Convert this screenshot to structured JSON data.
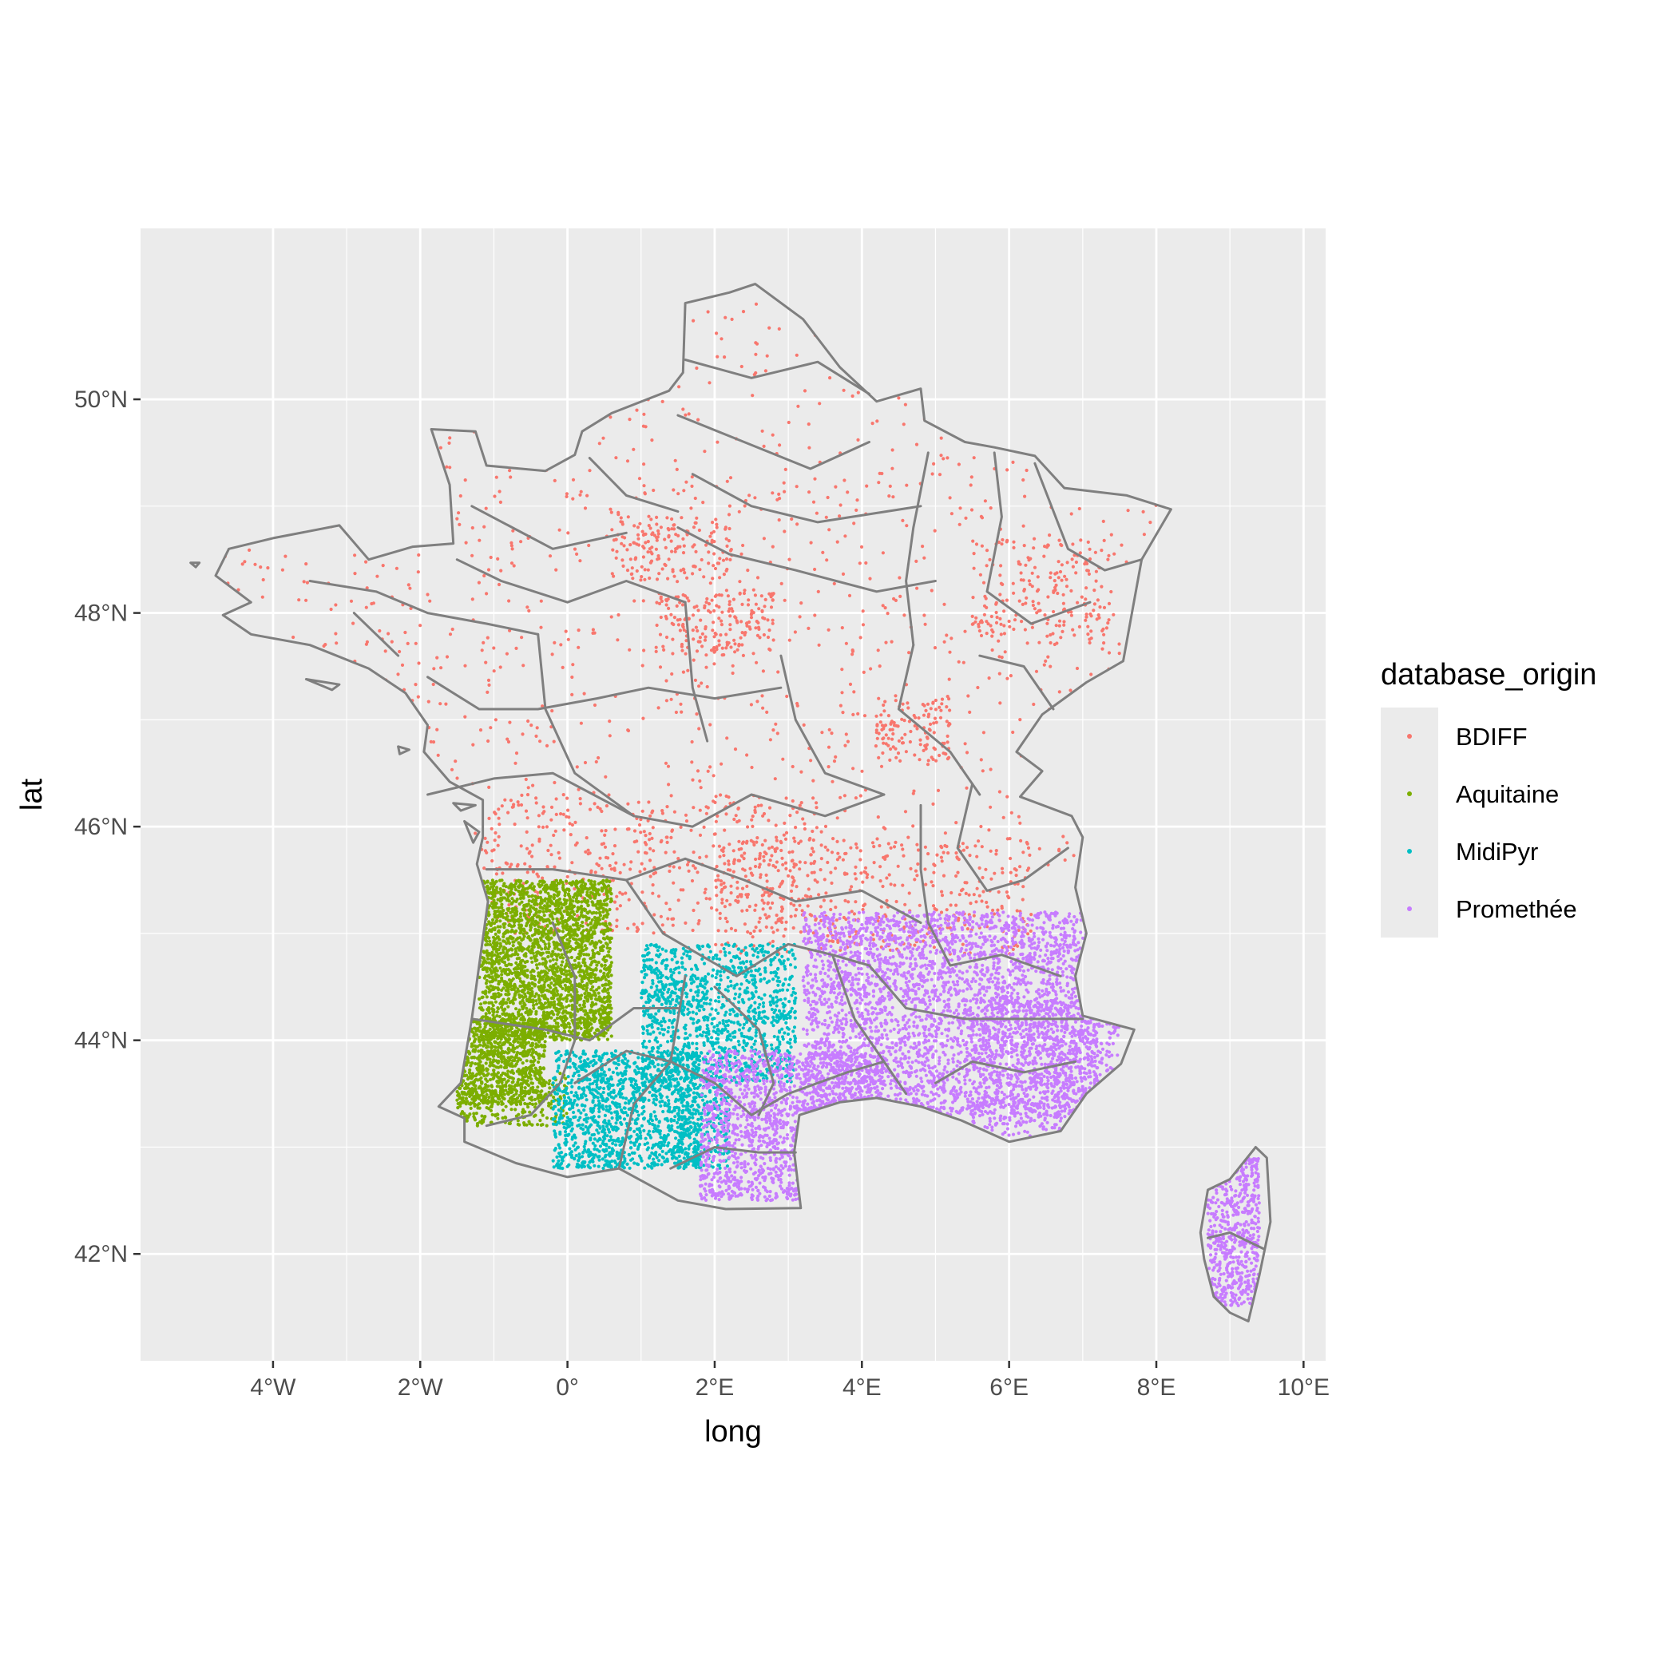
{
  "chart_data": {
    "type": "scatter",
    "title": "",
    "xlabel": "long",
    "ylabel": "lat",
    "xlim": [
      -5.8,
      10.3
    ],
    "ylim": [
      41.0,
      51.6
    ],
    "x_ticks": [
      {
        "value": -4,
        "label": "4°W"
      },
      {
        "value": -2,
        "label": "2°W"
      },
      {
        "value": 0,
        "label": "0°"
      },
      {
        "value": 2,
        "label": "2°E"
      },
      {
        "value": 4,
        "label": "4°E"
      },
      {
        "value": 6,
        "label": "6°E"
      },
      {
        "value": 8,
        "label": "8°E"
      },
      {
        "value": 10,
        "label": "10°E"
      }
    ],
    "y_ticks": [
      {
        "value": 42,
        "label": "42°N"
      },
      {
        "value": 44,
        "label": "44°N"
      },
      {
        "value": 46,
        "label": "46°N"
      },
      {
        "value": 48,
        "label": "48°N"
      },
      {
        "value": 50,
        "label": "50°N"
      }
    ],
    "grid": true,
    "background_color": "#ebebeb",
    "border_color": "#808080",
    "legend": {
      "title": "database_origin",
      "position": "right"
    },
    "series": [
      {
        "name": "BDIFF",
        "color": "#f8766d",
        "regions": [
          {
            "lon": [
              -4.8,
              8.0
            ],
            "lat": [
              45.6,
              50.9
            ],
            "weight": 1400
          },
          {
            "lon": [
              -1.6,
              3.4
            ],
            "lat": [
              45.0,
              46.3
            ],
            "weight": 500
          },
          {
            "lon": [
              2.0,
              6.3
            ],
            "lat": [
              44.8,
              45.9
            ],
            "weight": 450
          },
          {
            "lon": [
              0.6,
              2.2
            ],
            "lat": [
              48.3,
              48.9
            ],
            "weight": 160
          },
          {
            "lon": [
              1.2,
              2.8
            ],
            "lat": [
              47.6,
              48.2
            ],
            "weight": 180
          },
          {
            "lon": [
              5.5,
              7.4
            ],
            "lat": [
              47.7,
              48.7
            ],
            "weight": 200
          },
          {
            "lon": [
              4.2,
              5.2
            ],
            "lat": [
              46.6,
              47.2
            ],
            "weight": 120
          }
        ]
      },
      {
        "name": "Aquitaine",
        "color": "#7cae00",
        "regions": [
          {
            "lon": [
              -1.2,
              0.6
            ],
            "lat": [
              44.0,
              45.5
            ],
            "weight": 2600
          },
          {
            "lon": [
              -1.5,
              -0.3
            ],
            "lat": [
              43.4,
              44.2
            ],
            "weight": 900
          },
          {
            "lon": [
              -1.5,
              0.0
            ],
            "lat": [
              43.2,
              43.7
            ],
            "weight": 260
          }
        ]
      },
      {
        "name": "MidiPyr",
        "color": "#00bfc4",
        "regions": [
          {
            "lon": [
              1.0,
              3.1
            ],
            "lat": [
              43.6,
              44.9
            ],
            "weight": 1200
          },
          {
            "lon": [
              -0.2,
              1.8
            ],
            "lat": [
              42.8,
              43.9
            ],
            "weight": 1300
          },
          {
            "lon": [
              1.5,
              2.2
            ],
            "lat": [
              42.8,
              43.6
            ],
            "weight": 250
          }
        ]
      },
      {
        "name": "Promethée",
        "color": "#c77cff",
        "regions": [
          {
            "lon": [
              3.2,
              7.2
            ],
            "lat": [
              43.3,
              45.2
            ],
            "weight": 3600
          },
          {
            "lon": [
              1.8,
              4.3
            ],
            "lat": [
              42.5,
              43.9
            ],
            "weight": 1800
          },
          {
            "lon": [
              5.5,
              7.5
            ],
            "lat": [
              43.1,
              44.4
            ],
            "weight": 800
          },
          {
            "lon": [
              8.7,
              9.4
            ],
            "lat": [
              41.5,
              42.9
            ],
            "weight": 650
          }
        ]
      }
    ]
  }
}
